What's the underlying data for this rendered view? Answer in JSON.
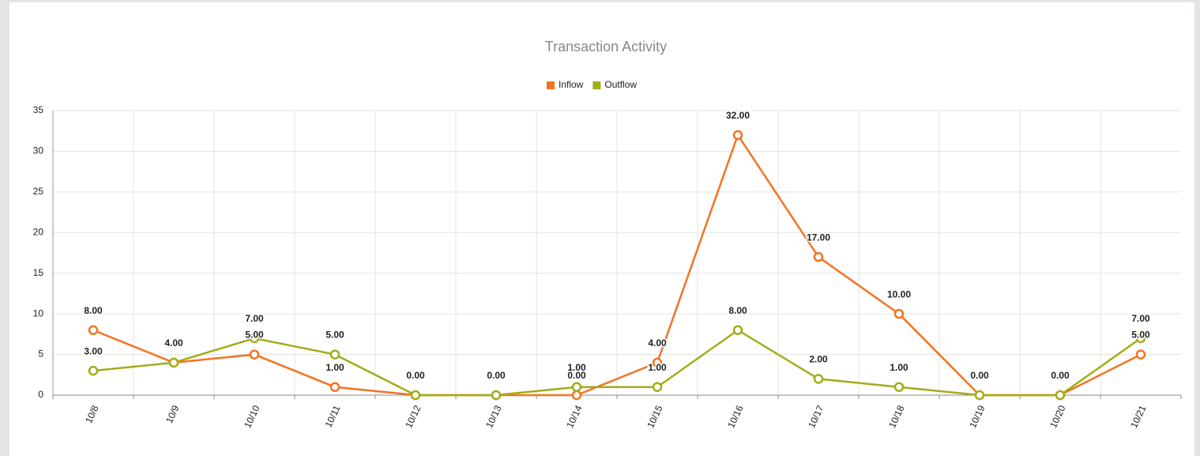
{
  "chart_data": {
    "type": "line",
    "title": "Transaction Activity",
    "categories": [
      "10/8",
      "10/9",
      "10/10",
      "10/11",
      "10/12",
      "10/13",
      "10/14",
      "10/15",
      "10/16",
      "10/17",
      "10/18",
      "10/19",
      "10/20",
      "10/21"
    ],
    "series": [
      {
        "name": "Inflow",
        "color": "#f47321",
        "values": [
          8,
          4,
          5,
          1,
          0,
          0,
          0,
          4,
          32,
          17,
          10,
          0,
          0,
          5
        ],
        "value_labels": [
          "8.00",
          "4.00",
          "5.00",
          "1.00",
          "0.00",
          "0.00",
          "0.00",
          "4.00",
          "32.00",
          "17.00",
          "10.00",
          "0.00",
          "0.00",
          "5.00"
        ]
      },
      {
        "name": "Outflow",
        "color": "#a2ad18",
        "values": [
          3,
          4,
          7,
          5,
          0,
          0,
          1,
          1,
          8,
          2,
          1,
          0,
          0,
          7
        ],
        "value_labels": [
          "3.00",
          "4.00",
          "7.00",
          "5.00",
          "0.00",
          "0.00",
          "1.00",
          "1.00",
          "8.00",
          "2.00",
          "1.00",
          "0.00",
          "0.00",
          "7.00"
        ]
      }
    ],
    "ylim": [
      0,
      35
    ],
    "yticks": [
      0,
      5,
      10,
      15,
      20,
      25,
      30,
      35
    ],
    "grid": true,
    "legend": "top"
  }
}
